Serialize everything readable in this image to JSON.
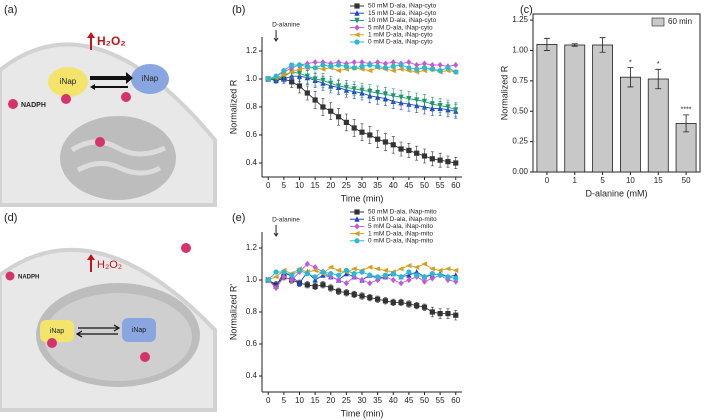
{
  "schematics": [
    {
      "panel_label": "(a)",
      "sensor_left": "iNap",
      "sensor_right": "iNap",
      "signal": "H₂O₂",
      "cofactor": "NADPH"
    },
    {
      "panel_label": "(d)",
      "sensor_left": "iNap",
      "sensor_right": "iNap",
      "signal": "H₂O₂",
      "cofactor": "NADPH"
    }
  ],
  "chart_data": [
    {
      "type": "line",
      "panel_label": "(b)",
      "xlabel": "Time (min)",
      "ylabel": "Normalized R",
      "annotation": {
        "text": "D-alanine",
        "x": 2.5
      },
      "legend": "upper right",
      "x": [
        0,
        2.5,
        5,
        7.5,
        10,
        12.5,
        15,
        17.5,
        20,
        22.5,
        25,
        27.5,
        30,
        32.5,
        35,
        37.5,
        40,
        42.5,
        45,
        47.5,
        50,
        52.5,
        55,
        57.5,
        60
      ],
      "xlim": [
        -2,
        62
      ],
      "xticks": [
        0,
        5,
        10,
        15,
        20,
        25,
        30,
        35,
        40,
        45,
        50,
        55,
        60
      ],
      "ylim": [
        0.3,
        1.3
      ],
      "yticks": [
        0.4,
        0.6,
        0.8,
        {
          "value": 1,
          "label": "1.0"
        },
        1.2
      ],
      "series": [
        {
          "name": "50 mM D-ala, iNap-cyto",
          "color": "#333333",
          "marker": "square",
          "values": [
            1.0,
            1.0,
            1.0,
            0.98,
            0.95,
            0.9,
            0.85,
            0.8,
            0.77,
            0.73,
            0.69,
            0.65,
            0.62,
            0.6,
            0.57,
            0.55,
            0.53,
            0.5,
            0.49,
            0.47,
            0.45,
            0.43,
            0.42,
            0.41,
            0.4
          ],
          "errors": [
            0.01,
            0.02,
            0.03,
            0.04,
            0.05,
            0.05,
            0.06,
            0.06,
            0.06,
            0.06,
            0.06,
            0.06,
            0.06,
            0.06,
            0.06,
            0.06,
            0.06,
            0.05,
            0.05,
            0.05,
            0.05,
            0.05,
            0.05,
            0.04,
            0.04
          ]
        },
        {
          "name": "15 mM D-ala, iNap-cyto",
          "color": "#2040d0",
          "marker": "triangle-up",
          "values": [
            1.0,
            0.99,
            1.0,
            1.02,
            1.02,
            1.01,
            0.99,
            0.97,
            0.95,
            0.94,
            0.92,
            0.91,
            0.9,
            0.88,
            0.87,
            0.86,
            0.84,
            0.83,
            0.82,
            0.81,
            0.8,
            0.79,
            0.79,
            0.78,
            0.77
          ],
          "errors": [
            0.01,
            0.02,
            0.03,
            0.04,
            0.04,
            0.05,
            0.05,
            0.05,
            0.05,
            0.05,
            0.05,
            0.05,
            0.05,
            0.05,
            0.05,
            0.05,
            0.05,
            0.05,
            0.05,
            0.05,
            0.05,
            0.05,
            0.05,
            0.05,
            0.05
          ]
        },
        {
          "name": "10 mM D-ala, iNap-cyto",
          "color": "#1a9a6a",
          "marker": "triangle-down",
          "values": [
            1.0,
            1.0,
            1.02,
            1.05,
            1.04,
            1.02,
            1.0,
            0.99,
            0.97,
            0.95,
            0.94,
            0.93,
            0.92,
            0.91,
            0.9,
            0.89,
            0.88,
            0.87,
            0.86,
            0.85,
            0.84,
            0.82,
            0.81,
            0.8,
            0.78
          ],
          "errors": [
            0.01,
            0.02,
            0.03,
            0.04,
            0.04,
            0.05,
            0.05,
            0.05,
            0.05,
            0.05,
            0.05,
            0.05,
            0.05,
            0.05,
            0.05,
            0.05,
            0.05,
            0.05,
            0.05,
            0.05,
            0.05,
            0.05,
            0.05,
            0.05,
            0.05
          ]
        },
        {
          "name": "5 mM D-ala, iNap-cyto",
          "color": "#c05bd6",
          "marker": "diamond",
          "values": [
            1.0,
            1.02,
            1.05,
            1.08,
            1.1,
            1.11,
            1.12,
            1.12,
            1.11,
            1.12,
            1.11,
            1.12,
            1.12,
            1.11,
            1.12,
            1.11,
            1.12,
            1.11,
            1.12,
            1.1,
            1.11,
            1.1,
            1.1,
            1.09,
            1.1
          ]
        },
        {
          "name": "1 mM D-ala, iNap-cyto",
          "color": "#d4a020",
          "marker": "triangle-left",
          "values": [
            1.0,
            1.01,
            1.03,
            1.05,
            1.07,
            1.08,
            1.08,
            1.07,
            1.08,
            1.06,
            1.07,
            1.08,
            1.07,
            1.06,
            1.08,
            1.07,
            1.06,
            1.07,
            1.06,
            1.05,
            1.06,
            1.07,
            1.05,
            1.06,
            1.05
          ]
        },
        {
          "name": "0 mM D-ala, iNap-cyto",
          "color": "#2bb8d0",
          "marker": "circle",
          "values": [
            1.0,
            1.02,
            1.06,
            1.1,
            1.1,
            1.09,
            1.08,
            1.1,
            1.09,
            1.1,
            1.09,
            1.08,
            1.09,
            1.1,
            1.09,
            1.08,
            1.09,
            1.1,
            1.08,
            1.07,
            1.08,
            1.07,
            1.06,
            1.08,
            1.05
          ]
        }
      ]
    },
    {
      "type": "bar",
      "panel_label": "(c)",
      "xlabel": "D-alanine (mM)",
      "ylabel": "Normalized R",
      "legend": "upper right",
      "categories": [
        "0",
        "1",
        "5",
        "10",
        "15",
        "50"
      ],
      "ylim": [
        0,
        1.3
      ],
      "yticks": [
        {
          "value": 0,
          "label": "0.00"
        },
        {
          "value": 0.25,
          "label": "0.25"
        },
        {
          "value": 0.5,
          "label": "0.50"
        },
        {
          "value": 0.75,
          "label": "0.75"
        },
        {
          "value": 1,
          "label": "1.00"
        },
        {
          "value": 1.25,
          "label": "1.25"
        }
      ],
      "series": [
        {
          "name": "60 min",
          "color": "#c8c8c8",
          "values": [
            1.05,
            1.045,
            1.045,
            0.78,
            0.765,
            0.4
          ],
          "errors": [
            0.05,
            0.01,
            0.06,
            0.08,
            0.08,
            0.07
          ],
          "significance": [
            null,
            null,
            null,
            "*",
            "*",
            "****"
          ]
        }
      ]
    },
    {
      "type": "line",
      "panel_label": "(e)",
      "xlabel": "Time (min)",
      "ylabel": "Normalized R'",
      "annotation": {
        "text": "D-alanine",
        "x": 2.5
      },
      "legend": "upper right",
      "x": [
        0,
        2.5,
        5,
        7.5,
        10,
        12.5,
        15,
        17.5,
        20,
        22.5,
        25,
        27.5,
        30,
        32.5,
        35,
        37.5,
        40,
        42.5,
        45,
        47.5,
        50,
        52.5,
        55,
        57.5,
        60
      ],
      "xlim": [
        -2,
        62
      ],
      "xticks": [
        0,
        5,
        10,
        15,
        20,
        25,
        30,
        35,
        40,
        45,
        50,
        55,
        60
      ],
      "ylim": [
        0.3,
        1.3
      ],
      "yticks": [
        0.4,
        0.6,
        0.8,
        {
          "value": 1,
          "label": "1.0"
        },
        1.2
      ],
      "series": [
        {
          "name": "50 mM D-ala, iNap-mito",
          "color": "#333333",
          "marker": "square",
          "values": [
            1.0,
            0.97,
            1.02,
            1.0,
            0.98,
            0.97,
            0.96,
            0.97,
            0.95,
            0.93,
            0.92,
            0.91,
            0.9,
            0.89,
            0.88,
            0.87,
            0.86,
            0.86,
            0.85,
            0.84,
            0.83,
            0.8,
            0.79,
            0.79,
            0.78
          ],
          "errors": [
            0.01,
            0.02,
            0.02,
            0.02,
            0.02,
            0.02,
            0.02,
            0.02,
            0.02,
            0.02,
            0.02,
            0.02,
            0.02,
            0.02,
            0.02,
            0.02,
            0.02,
            0.02,
            0.02,
            0.02,
            0.02,
            0.03,
            0.03,
            0.03,
            0.03
          ]
        },
        {
          "name": "15 mM D-ala, iNap-mito",
          "color": "#2040d0",
          "marker": "triangle-up",
          "values": [
            1.0,
            0.96,
            1.05,
            1.02,
            0.98,
            1.05,
            1.0,
            1.03,
            1.02,
            1.0,
            1.04,
            1.02,
            1.0,
            1.03,
            1.01,
            1.02,
            1.04,
            1.02,
            1.03,
            1.05,
            1.02,
            1.03,
            1.04,
            1.02,
            1.03
          ]
        },
        {
          "name": "5 mM D-ala, iNap-mito",
          "color": "#c05bd6",
          "marker": "diamond",
          "values": [
            1.0,
            0.95,
            1.02,
            1.0,
            1.05,
            1.1,
            1.08,
            1.05,
            1.02,
            1.0,
            0.98,
            1.02,
            1.0,
            0.98,
            1.0,
            1.02,
            1.0,
            0.98,
            1.0,
            1.02,
            0.99,
            1.01,
            1.03,
            1.0,
            0.99
          ]
        },
        {
          "name": "1 mM D-ala, iNap-mito",
          "color": "#d4a020",
          "marker": "triangle-left",
          "values": [
            1.0,
            1.02,
            1.06,
            1.04,
            1.07,
            1.05,
            1.06,
            1.04,
            1.08,
            1.06,
            1.05,
            1.07,
            1.06,
            1.08,
            1.07,
            1.06,
            1.05,
            1.07,
            1.09,
            1.08,
            1.1,
            1.07,
            1.06,
            1.07,
            1.06
          ]
        },
        {
          "name": "0 mM D-ala, iNap-mito",
          "color": "#2bb8d0",
          "marker": "circle",
          "values": [
            1.0,
            1.05,
            1.05,
            1.03,
            1.06,
            1.04,
            1.02,
            1.05,
            1.04,
            1.03,
            1.06,
            1.04,
            1.05,
            1.03,
            1.02,
            1.03,
            1.04,
            1.02,
            1.05,
            1.03,
            1.02,
            1.04,
            1.03,
            1.02,
            1.01
          ]
        }
      ]
    }
  ]
}
